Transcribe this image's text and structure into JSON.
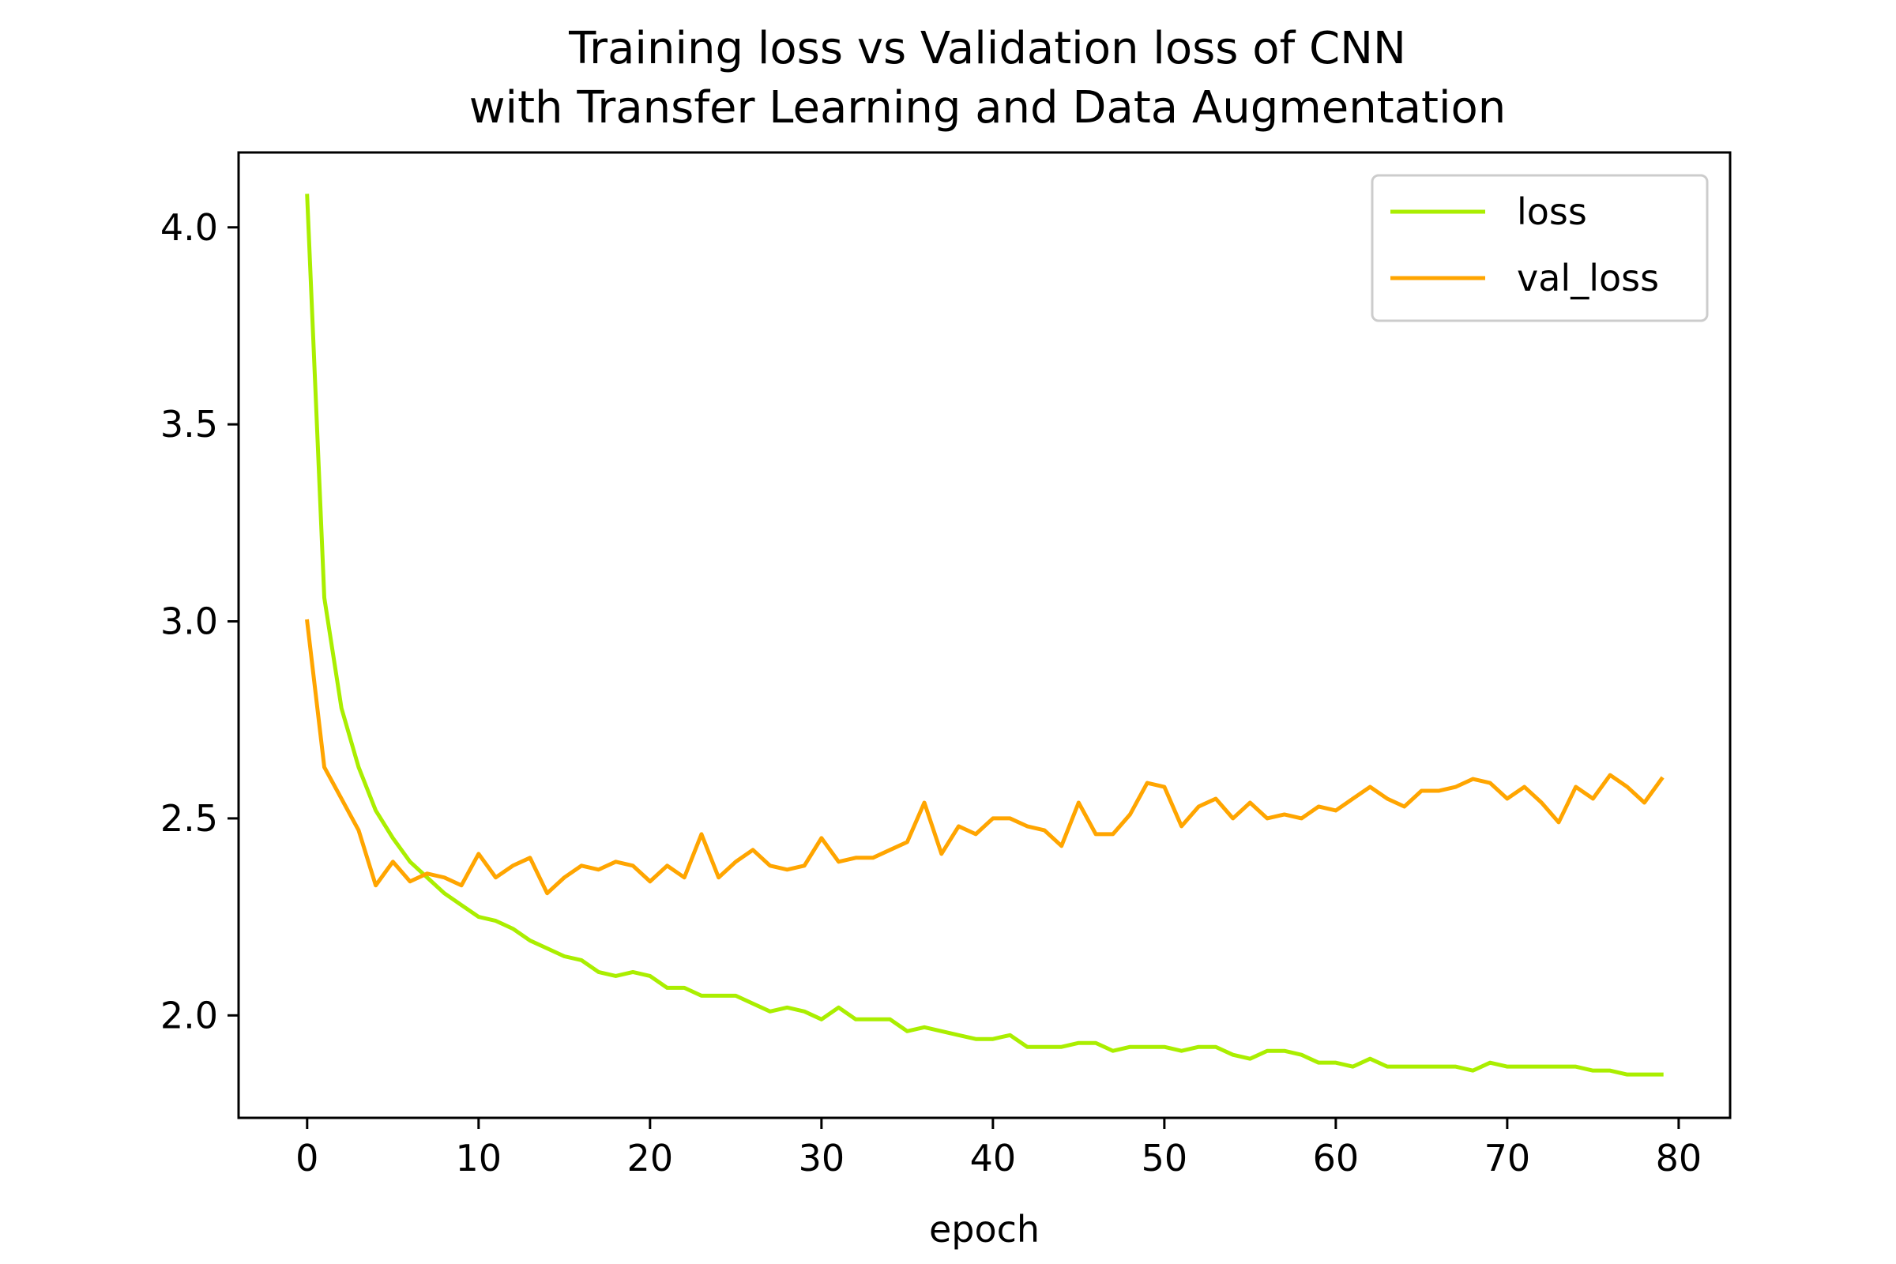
{
  "chart_data": {
    "type": "line",
    "title_line1": "Training loss vs Validation loss of CNN",
    "title_line2": "with Transfer Learning and Data Augmentation",
    "xlabel": "epoch",
    "ylabel": "",
    "xlim": [
      -4,
      83
    ],
    "ylim": [
      1.74,
      4.19
    ],
    "xticks": [
      0,
      10,
      20,
      30,
      40,
      50,
      60,
      70,
      80
    ],
    "xtick_labels": [
      "0",
      "10",
      "20",
      "30",
      "40",
      "50",
      "60",
      "70",
      "80"
    ],
    "yticks": [
      2.0,
      2.5,
      3.0,
      3.5,
      4.0
    ],
    "ytick_labels": [
      "2.0",
      "2.5",
      "3.0",
      "3.5",
      "4.0"
    ],
    "grid": false,
    "legend_position": "top-right",
    "series": [
      {
        "name": "loss",
        "color": "#aaee00",
        "values": [
          4.08,
          3.06,
          2.78,
          2.63,
          2.52,
          2.45,
          2.39,
          2.35,
          2.31,
          2.28,
          2.25,
          2.24,
          2.22,
          2.19,
          2.17,
          2.15,
          2.14,
          2.11,
          2.1,
          2.11,
          2.1,
          2.07,
          2.07,
          2.05,
          2.05,
          2.05,
          2.03,
          2.01,
          2.02,
          2.01,
          1.99,
          2.02,
          1.99,
          1.99,
          1.99,
          1.96,
          1.97,
          1.96,
          1.95,
          1.94,
          1.94,
          1.95,
          1.92,
          1.92,
          1.92,
          1.93,
          1.93,
          1.91,
          1.92,
          1.92,
          1.92,
          1.91,
          1.92,
          1.92,
          1.9,
          1.89,
          1.91,
          1.91,
          1.9,
          1.88,
          1.88,
          1.87,
          1.89,
          1.87,
          1.87,
          1.87,
          1.87,
          1.87,
          1.86,
          1.88,
          1.87,
          1.87,
          1.87,
          1.87,
          1.87,
          1.86,
          1.86,
          1.85,
          1.85,
          1.85
        ]
      },
      {
        "name": "val_loss",
        "color": "#ffa500",
        "values": [
          3.0,
          2.63,
          2.55,
          2.47,
          2.33,
          2.39,
          2.34,
          2.36,
          2.35,
          2.33,
          2.41,
          2.35,
          2.38,
          2.4,
          2.31,
          2.35,
          2.38,
          2.37,
          2.39,
          2.38,
          2.34,
          2.38,
          2.35,
          2.46,
          2.35,
          2.39,
          2.42,
          2.38,
          2.37,
          2.38,
          2.45,
          2.39,
          2.4,
          2.4,
          2.42,
          2.44,
          2.54,
          2.41,
          2.48,
          2.46,
          2.5,
          2.5,
          2.48,
          2.47,
          2.43,
          2.54,
          2.46,
          2.46,
          2.51,
          2.59,
          2.58,
          2.48,
          2.53,
          2.55,
          2.5,
          2.54,
          2.5,
          2.51,
          2.5,
          2.53,
          2.52,
          2.55,
          2.58,
          2.55,
          2.53,
          2.57,
          2.57,
          2.58,
          2.6,
          2.59,
          2.55,
          2.58,
          2.54,
          2.49,
          2.58,
          2.55,
          2.61,
          2.58,
          2.54,
          2.6
        ]
      }
    ]
  }
}
